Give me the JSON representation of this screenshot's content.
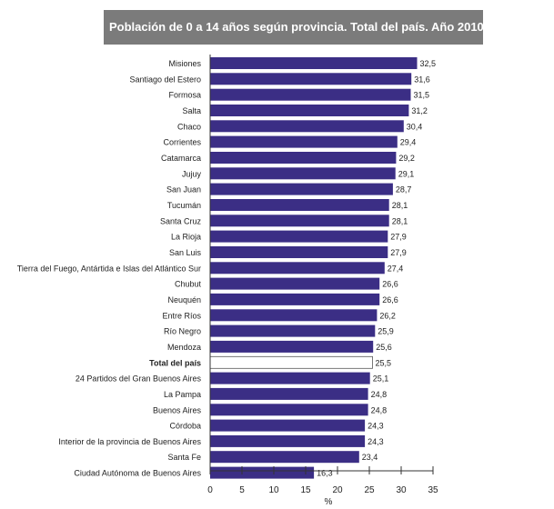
{
  "chart_data": {
    "type": "bar",
    "orientation": "horizontal",
    "title": "Población de 0 a 14 años según provincia. Total del país. Año 2010",
    "xlabel": "%",
    "ylabel": "",
    "xlim": [
      0,
      35
    ],
    "xticks": [
      "0",
      "5",
      "10",
      "15",
      "20",
      "25",
      "30",
      "35"
    ],
    "grid": false,
    "colors": {
      "bar": "#3b2e85",
      "highlight": "#ffffff",
      "title_bg": "#7b7b7b"
    },
    "categories": [
      "Misiones",
      "Santiago del Estero",
      "Formosa",
      "Salta",
      "Chaco",
      "Corrientes",
      "Catamarca",
      "Jujuy",
      "San Juan",
      "Tucumán",
      "Santa Cruz",
      "La Rioja",
      "San Luis",
      "Tierra del Fuego, Antártida e Islas del Atlántico Sur",
      "Chubut",
      "Neuquén",
      "Entre Ríos",
      "Río Negro",
      "Mendoza",
      "Total del país",
      "24 Partidos del Gran Buenos Aires",
      "La Pampa",
      "Buenos Aires",
      "Córdoba",
      "Interior de la provincia de Buenos Aires",
      "Santa Fe",
      "Ciudad Autónoma de Buenos Aires"
    ],
    "values": [
      32.5,
      31.6,
      31.5,
      31.2,
      30.4,
      29.4,
      29.2,
      29.1,
      28.7,
      28.1,
      28.1,
      27.9,
      27.9,
      27.4,
      26.6,
      26.6,
      26.2,
      25.9,
      25.6,
      25.5,
      25.1,
      24.8,
      24.8,
      24.3,
      24.3,
      23.4,
      16.3
    ],
    "value_labels": [
      "32,5",
      "31,6",
      "31,5",
      "31,2",
      "30,4",
      "29,4",
      "29,2",
      "29,1",
      "28,7",
      "28,1",
      "28,1",
      "27,9",
      "27,9",
      "27,4",
      "26,6",
      "26,6",
      "26,2",
      "25,9",
      "25,6",
      "25,5",
      "25,1",
      "24,8",
      "24,8",
      "24,3",
      "24,3",
      "23,4",
      "16,3"
    ],
    "highlight": "Total del país"
  }
}
